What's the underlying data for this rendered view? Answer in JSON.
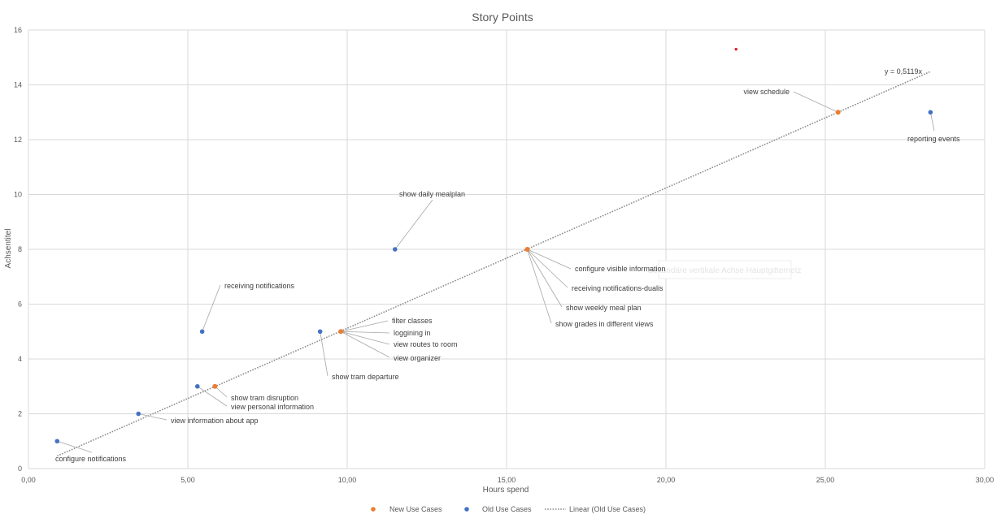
{
  "chart_data": {
    "type": "scatter",
    "title": "Story Points",
    "xlabel": "Hours spend",
    "ylabel": "Achsentitel",
    "xlim": [
      0,
      30
    ],
    "ylim": [
      0,
      16
    ],
    "x_ticks": [
      "0,00",
      "5,00",
      "10,00",
      "15,00",
      "20,00",
      "25,00",
      "30,00"
    ],
    "y_ticks": [
      "0",
      "2",
      "4",
      "6",
      "8",
      "10",
      "12",
      "14",
      "16"
    ],
    "grid": true,
    "legend_position": "bottom",
    "legend": [
      "New Use Cases",
      "Old Use Cases",
      "Linear (Old Use Cases)"
    ],
    "colors": {
      "new": "#ED7D31",
      "old": "#4472C4",
      "trend": "#8c8c8c",
      "outlier": "#e02020",
      "grid": "#d9d9d9",
      "text": "#595959",
      "leader": "#a6a6a6"
    },
    "series": [
      {
        "name": "New Use Cases",
        "points": [
          {
            "x": 25.4,
            "y": 13.0
          },
          {
            "x": 15.65,
            "y": 8.0
          },
          {
            "x": 9.8,
            "y": 5.0
          },
          {
            "x": 5.85,
            "y": 3.0
          }
        ]
      },
      {
        "name": "Old Use Cases",
        "points": [
          {
            "x": 28.3,
            "y": 13.0
          },
          {
            "x": 11.5,
            "y": 8.0
          },
          {
            "x": 5.45,
            "y": 5.0
          },
          {
            "x": 9.15,
            "y": 5.0
          },
          {
            "x": 5.3,
            "y": 3.0
          },
          {
            "x": 3.45,
            "y": 2.0
          },
          {
            "x": 0.9,
            "y": 1.0
          }
        ]
      },
      {
        "name": "",
        "points": [
          {
            "x": 22.2,
            "y": 15.3
          }
        ]
      }
    ],
    "trendline": {
      "name": "Linear (Old Use Cases)",
      "slope": 0.5119,
      "x_range": [
        0.9,
        28.3
      ],
      "equation": "y = 0,5119x"
    },
    "annotations": [
      {
        "text": "view schedule",
        "x": 25.4,
        "y": 13.0
      },
      {
        "text": "reporting events",
        "x": 28.3,
        "y": 13.0
      },
      {
        "text": "show daily mealplan",
        "x": 11.5,
        "y": 8.0
      },
      {
        "text": "configure visible information",
        "x": 15.65,
        "y": 8.0
      },
      {
        "text": "receiving notifications-dualis",
        "x": 15.65,
        "y": 8.0
      },
      {
        "text": "show weekly meal plan",
        "x": 15.65,
        "y": 8.0
      },
      {
        "text": "show grades in different views",
        "x": 15.65,
        "y": 8.0
      },
      {
        "text": "receiving notifications",
        "x": 5.45,
        "y": 5.0
      },
      {
        "text": "filter classes",
        "x": 9.8,
        "y": 5.0
      },
      {
        "text": "loggining in",
        "x": 9.8,
        "y": 5.0
      },
      {
        "text": "view routes to room",
        "x": 9.8,
        "y": 5.0
      },
      {
        "text": "view organizer",
        "x": 9.8,
        "y": 5.0
      },
      {
        "text": "show tram departure",
        "x": 9.15,
        "y": 5.0
      },
      {
        "text": "show tram disruption",
        "x": 5.85,
        "y": 3.0
      },
      {
        "text": "view personal information",
        "x": 5.3,
        "y": 3.0
      },
      {
        "text": "view information about app",
        "x": 3.45,
        "y": 2.0
      },
      {
        "text": "configure notifications",
        "x": 0.9,
        "y": 1.0
      }
    ],
    "ghost_text": "Sekundäre vertikale Achse Hauptgitternetz"
  }
}
